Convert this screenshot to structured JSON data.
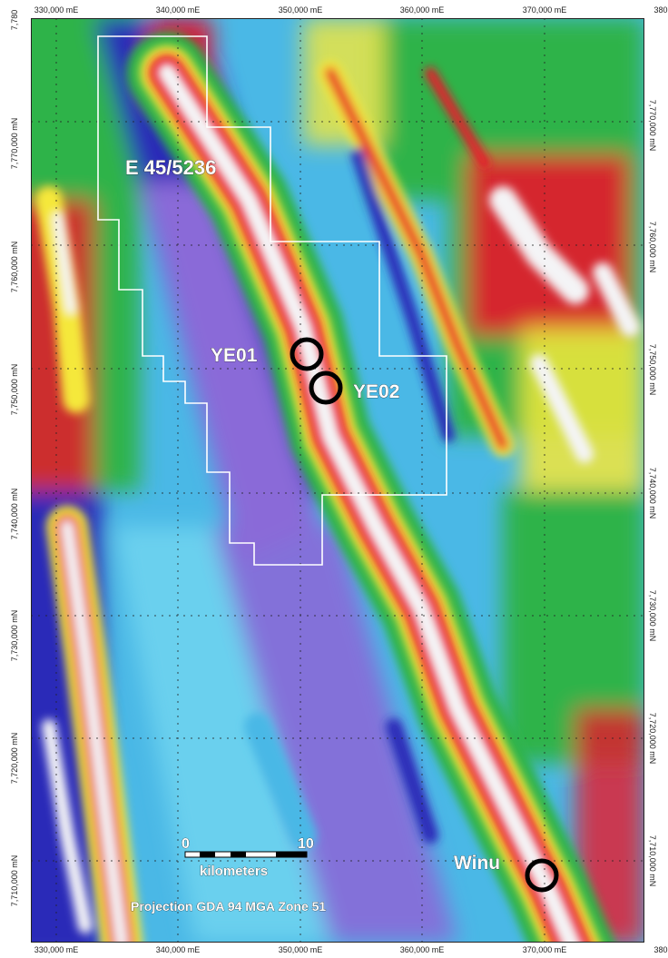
{
  "map": {
    "top_ticks": [
      "330,000 mE",
      "340,000 mE",
      "350,000 mE",
      "360,000 mE",
      "370,000 mE",
      "380"
    ],
    "bottom_ticks": [
      "330,000 mE",
      "340,000 mE",
      "350,000 mE",
      "360,000 mE",
      "370,000 mE",
      "380"
    ],
    "left_ticks": [
      "7,780",
      "7,770,000 mN",
      "7,760,000 mN",
      "7,750,000 mN",
      "7,740,000 mN",
      "7,730,000 mN",
      "7,720,000 mN",
      "7,710,000 mN"
    ],
    "right_ticks": [
      "7,770,000 mN",
      "7,760,000 mN",
      "7,750,000 mN",
      "7,740,000 mN",
      "7,730,000 mN",
      "7,720,000 mN",
      "7,710,000 mN"
    ],
    "tenement_label": "E 45/5236",
    "prospects": [
      {
        "name": "YE01"
      },
      {
        "name": "YE02"
      },
      {
        "name": "Winu"
      }
    ],
    "scale_bar": {
      "start": "0",
      "end": "10",
      "unit": "kilometers"
    },
    "projection": "Projection GDA 94 MGA Zone 51",
    "colors": {
      "ridge": "#f4f4f6",
      "high": "#e8152a",
      "mid_high": "#f5e83a",
      "mid": "#2fb34a",
      "low": "#4ab8e6",
      "very_low": "#2a2ab8",
      "purple": "#8a6ad8",
      "boundary": "#ffffff",
      "marker": "#000000",
      "grid": "#222222"
    }
  }
}
